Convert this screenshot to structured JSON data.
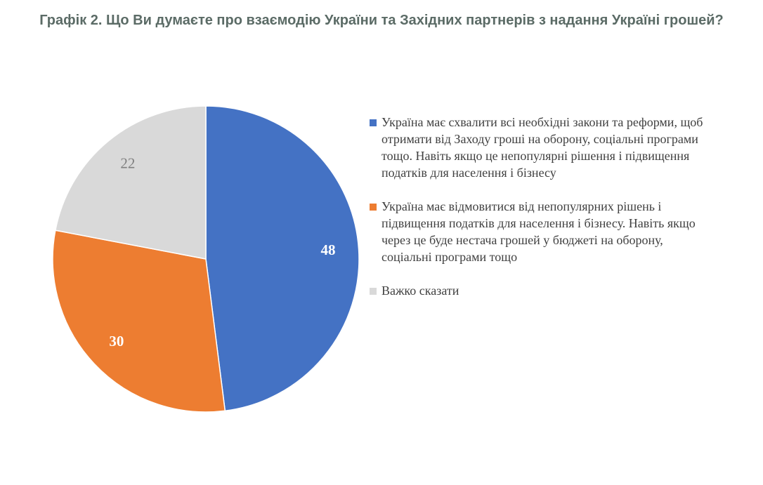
{
  "chart_data": {
    "type": "pie",
    "title": "Графік 2. Що Ви думаєте про взаємодію України та Західних партнерів з надання Україні грошей?",
    "legend_position": "right",
    "data_labels": true,
    "slices": [
      {
        "label": "Україна має схвалити всі необхідні закони та реформи, щоб отримати від Заходу гроші на оборону, соціальні програми тощо. Навіть якщо це непопулярні рішення і підвищення податків для населення і бізнесу",
        "value": 48,
        "color": "#4472c4",
        "label_color": "#ffffff"
      },
      {
        "label": "Україна має відмовитися від непопулярних рішень і підвищення податків для населення і бізнесу. Навіть якщо через це буде нестача грошей у бюджеті на оборону, соціальні програми тощо",
        "value": 30,
        "color": "#ed7d31",
        "label_color": "#ffffff"
      },
      {
        "label": "Важко сказати",
        "value": 22,
        "color": "#d9d9d9",
        "label_color": "#7f7f7f"
      }
    ]
  }
}
